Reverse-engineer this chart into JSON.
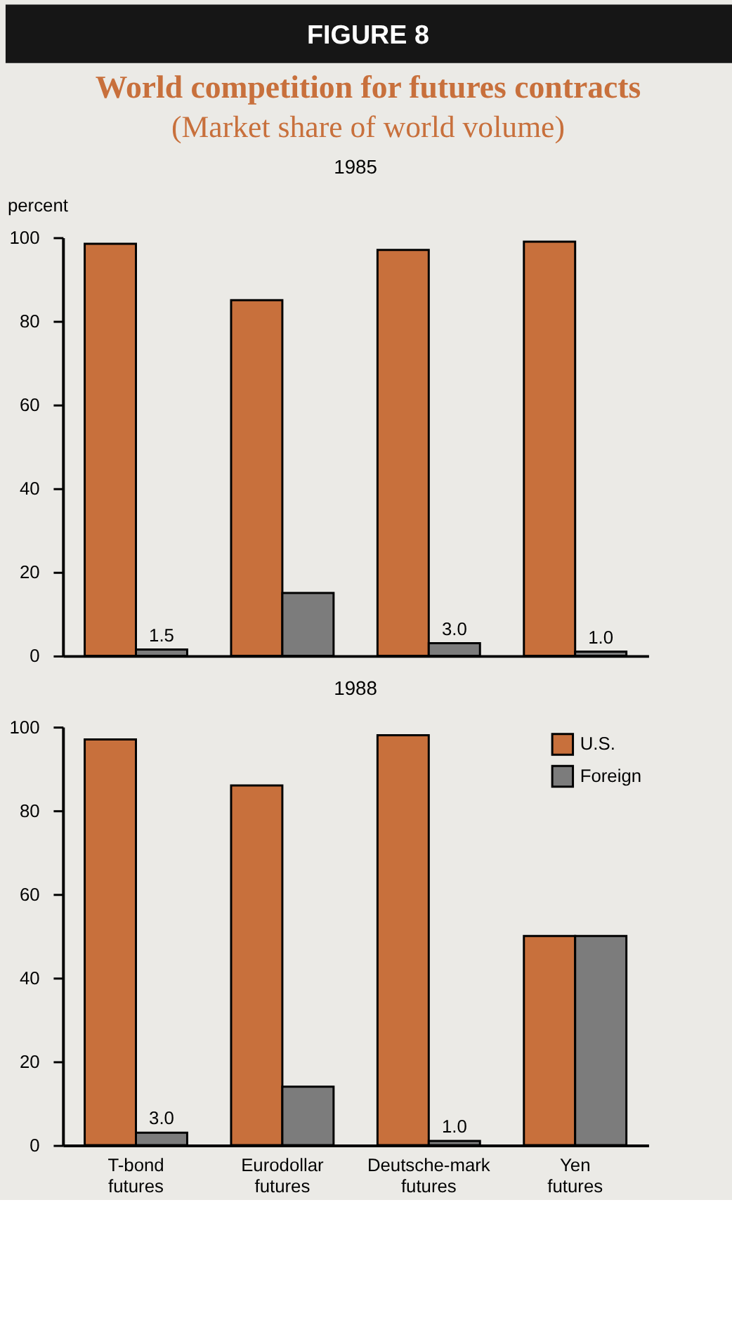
{
  "chart_data": [
    {
      "type": "bar",
      "title": "1985",
      "ylabel": "percent",
      "annotations": [
        "FIGURE 8",
        "World competition for futures contracts",
        "(Market share of world volume)"
      ],
      "categories": [
        null,
        null,
        null,
        null
      ],
      "series": [
        {
          "color": "#c8703c",
          "values": [
            98.5,
            85,
            97,
            99
          ]
        },
        {
          "color": "#7c7c7c",
          "values": [
            1.5,
            15,
            3.0,
            1.0
          ],
          "value_labels": [
            "1.5",
            null,
            "3.0",
            "1.0"
          ]
        }
      ],
      "ylim": [
        0,
        100
      ],
      "yticks": [
        0,
        20,
        40,
        60,
        80,
        100
      ],
      "grid": false,
      "legend": false,
      "tick_labels": "y"
    },
    {
      "type": "bar",
      "title": "1988",
      "categories": [
        "T-bond futures",
        "Eurodollar futures",
        "Deutsche-mark futures",
        "Yen futures"
      ],
      "series": [
        {
          "name": "U.S.",
          "color": "#c8703c",
          "values": [
            97,
            86,
            98,
            50
          ]
        },
        {
          "name": "Foreign",
          "color": "#7c7c7c",
          "values": [
            3.0,
            14,
            1.0,
            50
          ],
          "value_labels": [
            "3.0",
            null,
            "1.0",
            null
          ]
        }
      ],
      "ylim": [
        0,
        100
      ],
      "yticks": [
        0,
        20,
        40,
        60,
        80,
        100
      ],
      "grid": false,
      "legend": "top right"
    }
  ]
}
